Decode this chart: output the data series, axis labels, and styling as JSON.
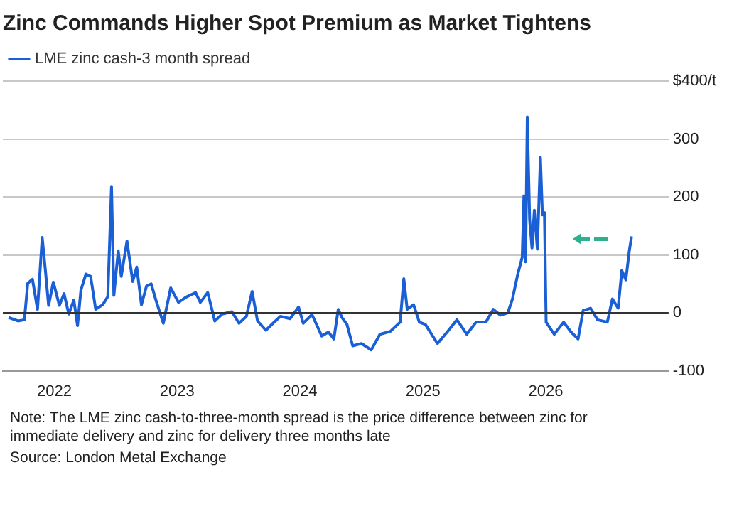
{
  "chart_data": {
    "type": "line",
    "title": "Zinc Commands Higher Spot Premium as Market Tightens",
    "legend": "top left",
    "grid": "y",
    "marker": "none",
    "line_style": "solid",
    "xlim": [
      "2021-08",
      "2027-01"
    ],
    "xticks": [
      "2022",
      "2023",
      "2024",
      "2025",
      "2026"
    ],
    "ylim": [
      -100,
      400
    ],
    "yticks": [
      -100,
      0,
      100,
      200,
      300,
      {
        "value": 400,
        "label": "$400/t"
      }
    ],
    "ref_lines": [
      {
        "axis": "y",
        "value": 0,
        "color": "#333333"
      }
    ],
    "annotations": [
      "Note: The LME zinc cash-to-three-month spread is the price difference between zinc for immediate delivery and zinc for delivery three months late",
      "Source: London Metal Exchange"
    ],
    "series": [
      {
        "name": "LME zinc cash-3 month spread",
        "color": "#1a5fd6",
        "x": [
          "2021-08-18",
          "2021-09-15",
          "2021-10-04",
          "2021-10-14",
          "2021-10-28",
          "2021-11-12",
          "2021-11-26",
          "2021-12-06",
          "2021-12-15",
          "2021-12-29",
          "2022-01-16",
          "2022-01-30",
          "2022-02-13",
          "2022-02-28",
          "2022-03-11",
          "2022-03-21",
          "2022-04-05",
          "2022-04-19",
          "2022-05-04",
          "2022-05-25",
          "2022-06-09",
          "2022-06-20",
          "2022-06-27",
          "2022-07-10",
          "2022-07-19",
          "2022-08-05",
          "2022-08-22",
          "2022-09-03",
          "2022-09-17",
          "2022-10-02",
          "2022-10-16",
          "2022-10-30",
          "2022-11-21",
          "2022-12-13",
          "2023-01-05",
          "2023-01-27",
          "2023-02-25",
          "2023-03-11",
          "2023-04-02",
          "2023-04-23",
          "2023-05-15",
          "2023-06-13",
          "2023-07-04",
          "2023-07-26",
          "2023-08-12",
          "2023-08-28",
          "2023-09-22",
          "2023-10-13",
          "2023-11-04",
          "2023-12-03",
          "2023-12-28",
          "2024-01-11",
          "2024-02-06",
          "2024-03-06",
          "2024-03-26",
          "2024-04-11",
          "2024-04-24",
          "2024-05-05",
          "2024-05-20",
          "2024-06-06",
          "2024-07-02",
          "2024-07-31",
          "2024-08-26",
          "2024-09-26",
          "2024-10-25",
          "2024-11-05",
          "2024-11-15",
          "2024-12-04",
          "2024-12-21",
          "2025-01-08",
          "2025-02-13",
          "2025-03-14",
          "2025-04-12",
          "2025-05-11",
          "2025-06-08",
          "2025-07-07",
          "2025-07-29",
          "2025-08-19",
          "2025-09-10",
          "2025-09-24",
          "2025-10-09",
          "2025-10-23",
          "2025-10-28",
          "2025-11-02",
          "2025-11-07",
          "2025-11-14",
          "2025-11-21",
          "2025-11-28",
          "2025-12-07",
          "2025-12-16",
          "2025-12-22",
          "2025-12-28",
          "2026-01-02",
          "2026-01-26",
          "2026-02-23",
          "2026-03-17",
          "2026-04-07",
          "2026-04-22",
          "2026-05-14",
          "2026-06-04",
          "2026-07-03",
          "2026-07-18",
          "2026-08-04",
          "2026-08-15",
          "2026-08-27",
          "2026-09-06",
          "2026-09-13"
        ],
        "values": [
          -8,
          -14,
          -12,
          51,
          58,
          6,
          130,
          70,
          13,
          53,
          13,
          33,
          -2,
          22,
          -22,
          39,
          67,
          63,
          6,
          14,
          28,
          218,
          30,
          107,
          63,
          124,
          54,
          79,
          14,
          46,
          50,
          22,
          -18,
          43,
          18,
          27,
          35,
          18,
          35,
          -14,
          -2,
          2,
          -18,
          -6,
          37,
          -14,
          -30,
          -18,
          -6,
          -10,
          10,
          -18,
          -3,
          -40,
          -33,
          -45,
          6,
          -8,
          -20,
          -57,
          -53,
          -64,
          -37,
          -32,
          -16,
          59,
          6,
          14,
          -16,
          -20,
          -53,
          -33,
          -12,
          -37,
          -16,
          -16,
          6,
          -4,
          0,
          24,
          65,
          96,
          202,
          88,
          338,
          161,
          112,
          177,
          110,
          268,
          169,
          173,
          -16,
          -37,
          -16,
          -33,
          -45,
          4,
          8,
          -12,
          -16,
          24,
          8,
          73,
          57,
          106,
          132
        ]
      }
    ]
  }
}
